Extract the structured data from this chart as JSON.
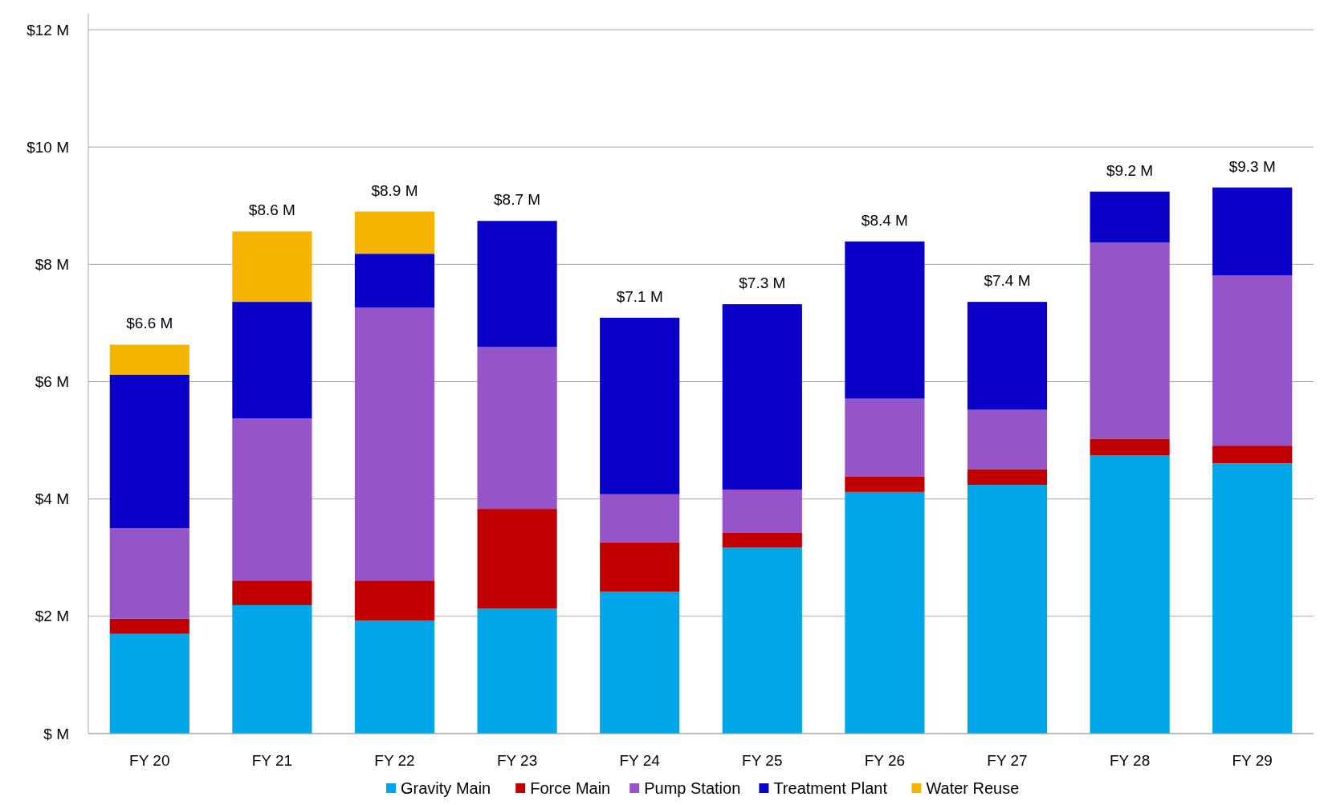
{
  "chart_data": {
    "type": "bar",
    "stacked": true,
    "categories": [
      "FY 20",
      "FY 21",
      "FY 22",
      "FY 23",
      "FY 24",
      "FY 25",
      "FY 26",
      "FY 27",
      "FY 28",
      "FY 29"
    ],
    "series": [
      {
        "name": "Gravity Main",
        "color": "#00a6e8",
        "values": [
          1.7,
          2.19,
          1.93,
          2.13,
          2.42,
          3.17,
          4.12,
          4.24,
          4.74,
          4.61
        ]
      },
      {
        "name": "Force Main",
        "color": "#c00000",
        "values": [
          0.26,
          0.42,
          0.68,
          1.7,
          0.84,
          0.26,
          0.26,
          0.27,
          0.29,
          0.3
        ]
      },
      {
        "name": "Pump Station",
        "color": "#9555c8",
        "values": [
          1.54,
          2.76,
          4.65,
          2.76,
          0.82,
          0.73,
          1.33,
          1.01,
          3.34,
          2.9
        ]
      },
      {
        "name": "Treatment Plant",
        "color": "#0a00c8",
        "values": [
          2.62,
          1.99,
          0.92,
          2.15,
          3.01,
          3.16,
          2.68,
          1.84,
          0.87,
          1.5
        ]
      },
      {
        "name": "Water Reuse",
        "color": "#f5b400",
        "values": [
          0.51,
          1.2,
          0.72,
          0,
          0,
          0,
          0,
          0,
          0,
          0
        ]
      }
    ],
    "totals": [
      "$6.6 M",
      "$8.6 M",
      "$8.9 M",
      "$8.7 M",
      "$7.1 M",
      "$7.3 M",
      "$8.4 M",
      "$7.4 M",
      "$9.2 M",
      "$9.3 M"
    ],
    "ylim": [
      0,
      12
    ],
    "yticks": [
      {
        "value": 0,
        "label": "$ M"
      },
      {
        "value": 2,
        "label": "$2 M"
      },
      {
        "value": 4,
        "label": "$4 M"
      },
      {
        "value": 6,
        "label": "$6 M"
      },
      {
        "value": 8,
        "label": "$8 M"
      },
      {
        "value": 10,
        "label": "$10 M"
      },
      {
        "value": 12,
        "label": "$12 M"
      }
    ],
    "grid": "y",
    "legend": "bottom"
  }
}
